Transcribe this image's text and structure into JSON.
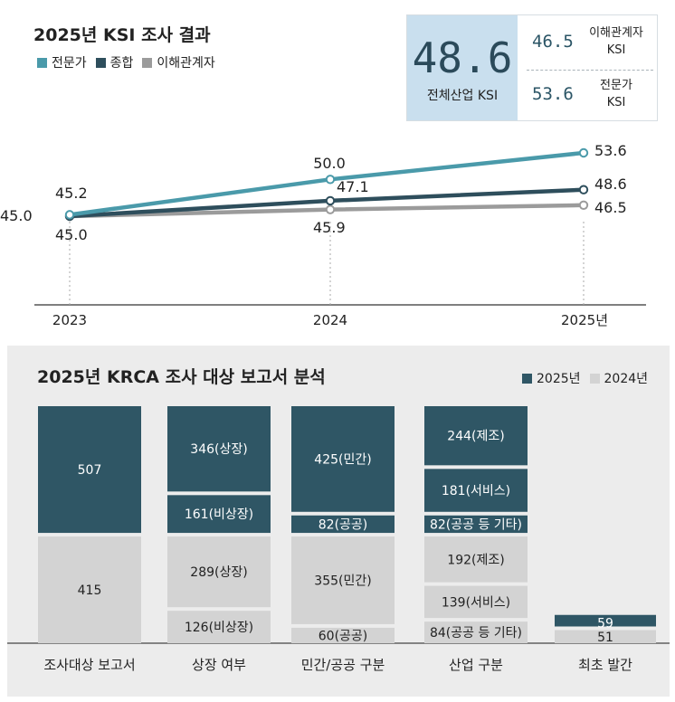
{
  "top": {
    "title": "2025년 KSI 조사 결과",
    "legend": [
      {
        "label": "전문가",
        "color": "#4a9aaa"
      },
      {
        "label": "종합",
        "color": "#2e4e5c"
      },
      {
        "label": "이해관계자",
        "color": "#9b9b9b"
      }
    ],
    "summary": {
      "main_value": "48.6",
      "main_label": "전체산업 KSI",
      "rows": [
        {
          "value": "46.5",
          "label_line1": "이해관계자",
          "label_line2": "KSI"
        },
        {
          "value": "53.6",
          "label_line1": "전문가",
          "label_line2": "KSI"
        }
      ]
    }
  },
  "bottom": {
    "title": "2025년 KRCA 조사 대상 보고서 분석",
    "legend": [
      {
        "label": "2025년",
        "color": "#2f5665"
      },
      {
        "label": "2024년",
        "color": "#d3d3d3"
      }
    ]
  },
  "chart_data": [
    {
      "type": "line",
      "title": "2025년 KSI 조사 결과",
      "x": [
        "2023",
        "2024",
        "2025년"
      ],
      "ylim": [
        40,
        58
      ],
      "series": [
        {
          "name": "전문가",
          "values": [
            45.2,
            50.0,
            53.6
          ],
          "labels": [
            "45.2",
            "50.0",
            "53.6"
          ],
          "color": "#4a9aaa"
        },
        {
          "name": "종합",
          "values": [
            45.0,
            47.1,
            48.6
          ],
          "labels": [
            "45.0",
            "47.1",
            "48.6"
          ],
          "color": "#2e4e5c"
        },
        {
          "name": "이해관계자",
          "values": [
            45.0,
            45.9,
            46.5
          ],
          "labels": [
            "45.0",
            "45.9",
            "46.5"
          ],
          "color": "#9b9b9b"
        }
      ]
    },
    {
      "type": "bar",
      "title": "2025년 KRCA 조사 대상 보고서 분석",
      "categories": [
        "조사대상 보고서",
        "상장 여부",
        "민간/공공 구분",
        "산업 구분",
        "최초 발간"
      ],
      "groups": [
        {
          "category": "조사대상 보고서",
          "y2025": [
            {
              "label": "507",
              "value": 507
            }
          ],
          "y2024": [
            {
              "label": "415",
              "value": 415
            }
          ]
        },
        {
          "category": "상장 여부",
          "y2025": [
            {
              "label": "346(상장)",
              "value": 346
            },
            {
              "label": "161(비상장)",
              "value": 161
            }
          ],
          "y2024": [
            {
              "label": "289(상장)",
              "value": 289
            },
            {
              "label": "126(비상장)",
              "value": 126
            }
          ]
        },
        {
          "category": "민간/공공 구분",
          "y2025": [
            {
              "label": "425(민간)",
              "value": 425
            },
            {
              "label": "82(공공)",
              "value": 82
            }
          ],
          "y2024": [
            {
              "label": "355(민간)",
              "value": 355
            },
            {
              "label": "60(공공)",
              "value": 60
            }
          ]
        },
        {
          "category": "산업 구분",
          "y2025": [
            {
              "label": "244(제조)",
              "value": 244
            },
            {
              "label": "181(서비스)",
              "value": 181
            },
            {
              "label": "82(공공 등 기타)",
              "value": 82
            }
          ],
          "y2024": [
            {
              "label": "192(제조)",
              "value": 192
            },
            {
              "label": "139(서비스)",
              "value": 139
            },
            {
              "label": "84(공공 등 기타)",
              "value": 84
            }
          ]
        },
        {
          "category": "최초 발간",
          "y2025": [
            {
              "label": "59",
              "value": 59
            }
          ],
          "y2024": [
            {
              "label": "51",
              "value": 51
            }
          ]
        }
      ]
    }
  ]
}
